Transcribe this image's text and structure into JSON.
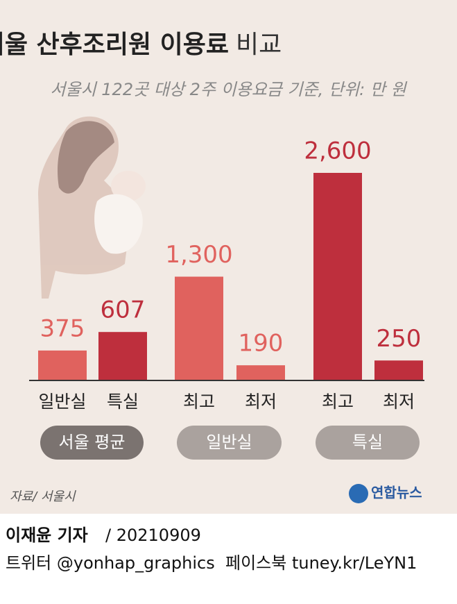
{
  "chart_data": {
    "type": "bar",
    "title": "서울 산후조리원 이용료",
    "title_suffix": "비교",
    "subtitle": "서울시 122곳 대상 2주 이용요금 기준, 단위: 만 원",
    "categories": [
      "일반실",
      "특실",
      "최고",
      "최저",
      "최고",
      "최저"
    ],
    "values": [
      375,
      607,
      1300,
      190,
      2600,
      250
    ],
    "value_labels": [
      "375",
      "607",
      "1,300",
      "190",
      "2,600",
      "250"
    ],
    "colors": [
      "#e0625e",
      "#be2f3d",
      "#e0625e",
      "#e0625e",
      "#be2f3d",
      "#be2f3d"
    ],
    "groups": [
      {
        "label": "서울 평균",
        "color": "#7b7370"
      },
      {
        "label": "일반실",
        "color": "#aaa29e"
      },
      {
        "label": "특실",
        "color": "#aaa29e"
      }
    ],
    "source": "자료/ 서울시",
    "logo": "연합뉴스",
    "reporter": "이재윤 기자",
    "date": "/ 20210909",
    "social": "트위터 @yonhap_graphics  페이스북 tuney.kr/LeYN1"
  }
}
